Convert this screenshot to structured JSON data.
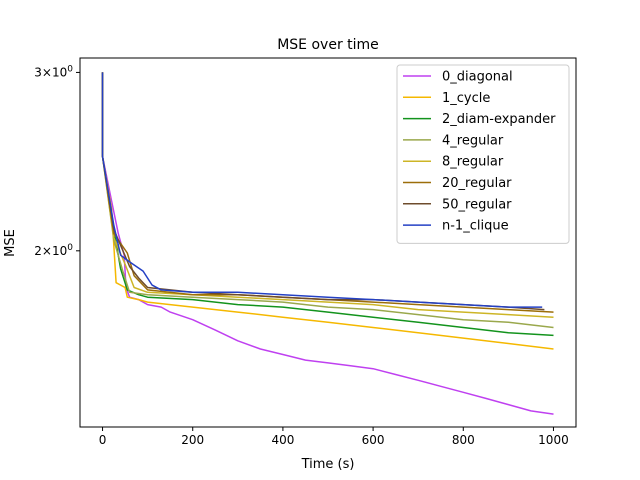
{
  "chart_data": {
    "type": "line",
    "title": "MSE over time",
    "xlabel": "Time (s)",
    "ylabel": "MSE",
    "xlim": [
      -50,
      1050
    ],
    "ylim": [
      1.34,
      3.1
    ],
    "yscale": "log",
    "grid": false,
    "legend_position": "top-right",
    "x_ticks": [
      {
        "value": 0,
        "label": "0"
      },
      {
        "value": 200,
        "label": "200"
      },
      {
        "value": 400,
        "label": "400"
      },
      {
        "value": 600,
        "label": "600"
      },
      {
        "value": 800,
        "label": "800"
      },
      {
        "value": 1000,
        "label": "1000"
      }
    ],
    "y_ticks": [
      {
        "value": 2.0,
        "base": "2",
        "exp": "0"
      },
      {
        "value": 3.0,
        "base": "3",
        "exp": "0"
      }
    ],
    "series": [
      {
        "name": "0_diagonal",
        "color": "#bf40f0",
        "points": [
          [
            0,
            3.0
          ],
          [
            0,
            2.48
          ],
          [
            20,
            2.24
          ],
          [
            35,
            2.08
          ],
          [
            48,
            1.98
          ],
          [
            52,
            1.84
          ],
          [
            60,
            1.8
          ],
          [
            80,
            1.79
          ],
          [
            100,
            1.77
          ],
          [
            130,
            1.76
          ],
          [
            150,
            1.74
          ],
          [
            200,
            1.71
          ],
          [
            250,
            1.67
          ],
          [
            300,
            1.63
          ],
          [
            350,
            1.6
          ],
          [
            400,
            1.58
          ],
          [
            450,
            1.56
          ],
          [
            500,
            1.55
          ],
          [
            550,
            1.54
          ],
          [
            600,
            1.53
          ],
          [
            650,
            1.51
          ],
          [
            700,
            1.49
          ],
          [
            750,
            1.47
          ],
          [
            800,
            1.45
          ],
          [
            850,
            1.43
          ],
          [
            900,
            1.41
          ],
          [
            950,
            1.39
          ],
          [
            1000,
            1.38
          ]
        ]
      },
      {
        "name": "1_cycle",
        "color": "#f5b800",
        "points": [
          [
            0,
            3.0
          ],
          [
            0,
            2.48
          ],
          [
            20,
            2.2
          ],
          [
            30,
            1.86
          ],
          [
            50,
            1.84
          ],
          [
            55,
            1.8
          ],
          [
            80,
            1.79
          ],
          [
            100,
            1.78
          ],
          [
            200,
            1.76
          ],
          [
            300,
            1.74
          ],
          [
            400,
            1.72
          ],
          [
            500,
            1.7
          ],
          [
            600,
            1.68
          ],
          [
            700,
            1.66
          ],
          [
            800,
            1.64
          ],
          [
            900,
            1.62
          ],
          [
            1000,
            1.6
          ]
        ]
      },
      {
        "name": "2_diam-expander",
        "color": "#13931d",
        "points": [
          [
            0,
            3.0
          ],
          [
            0,
            2.48
          ],
          [
            25,
            2.1
          ],
          [
            40,
            1.92
          ],
          [
            55,
            1.83
          ],
          [
            80,
            1.81
          ],
          [
            100,
            1.8
          ],
          [
            200,
            1.79
          ],
          [
            300,
            1.77
          ],
          [
            400,
            1.76
          ],
          [
            500,
            1.74
          ],
          [
            600,
            1.72
          ],
          [
            700,
            1.7
          ],
          [
            800,
            1.68
          ],
          [
            900,
            1.66
          ],
          [
            1000,
            1.65
          ]
        ]
      },
      {
        "name": "4_regular",
        "color": "#9aa84c",
        "points": [
          [
            0,
            3.0
          ],
          [
            0,
            2.48
          ],
          [
            25,
            2.05
          ],
          [
            45,
            1.91
          ],
          [
            60,
            1.82
          ],
          [
            100,
            1.81
          ],
          [
            200,
            1.8
          ],
          [
            300,
            1.79
          ],
          [
            400,
            1.78
          ],
          [
            500,
            1.76
          ],
          [
            600,
            1.75
          ],
          [
            700,
            1.73
          ],
          [
            800,
            1.71
          ],
          [
            900,
            1.7
          ],
          [
            1000,
            1.68
          ]
        ]
      },
      {
        "name": "8_regular",
        "color": "#cdb526",
        "points": [
          [
            0,
            3.0
          ],
          [
            0,
            2.48
          ],
          [
            25,
            2.06
          ],
          [
            50,
            1.94
          ],
          [
            70,
            1.84
          ],
          [
            100,
            1.82
          ],
          [
            200,
            1.81
          ],
          [
            300,
            1.8
          ],
          [
            400,
            1.79
          ],
          [
            500,
            1.78
          ],
          [
            600,
            1.77
          ],
          [
            700,
            1.75
          ],
          [
            800,
            1.74
          ],
          [
            900,
            1.73
          ],
          [
            1000,
            1.72
          ]
        ]
      },
      {
        "name": "20_regular",
        "color": "#9c6e0a",
        "points": [
          [
            0,
            3.0
          ],
          [
            0,
            2.48
          ],
          [
            25,
            2.08
          ],
          [
            55,
            1.99
          ],
          [
            70,
            1.89
          ],
          [
            100,
            1.83
          ],
          [
            200,
            1.81
          ],
          [
            300,
            1.81
          ],
          [
            400,
            1.8
          ],
          [
            500,
            1.79
          ],
          [
            600,
            1.78
          ],
          [
            700,
            1.77
          ],
          [
            800,
            1.76
          ],
          [
            900,
            1.75
          ],
          [
            1000,
            1.74
          ]
        ]
      },
      {
        "name": "50_regular",
        "color": "#6e4c2c",
        "points": [
          [
            0,
            3.0
          ],
          [
            0,
            2.48
          ],
          [
            25,
            2.1
          ],
          [
            60,
            1.93
          ],
          [
            80,
            1.88
          ],
          [
            100,
            1.84
          ],
          [
            200,
            1.82
          ],
          [
            300,
            1.81
          ],
          [
            400,
            1.8
          ],
          [
            500,
            1.79
          ],
          [
            600,
            1.79
          ],
          [
            700,
            1.78
          ],
          [
            800,
            1.77
          ],
          [
            900,
            1.76
          ],
          [
            980,
            1.75
          ]
        ]
      },
      {
        "name": "n-1_clique",
        "color": "#2440c4",
        "points": [
          [
            0,
            3.0
          ],
          [
            0,
            2.48
          ],
          [
            25,
            2.12
          ],
          [
            40,
            1.98
          ],
          [
            60,
            1.95
          ],
          [
            90,
            1.91
          ],
          [
            110,
            1.85
          ],
          [
            130,
            1.83
          ],
          [
            200,
            1.82
          ],
          [
            300,
            1.82
          ],
          [
            400,
            1.81
          ],
          [
            500,
            1.8
          ],
          [
            600,
            1.79
          ],
          [
            700,
            1.78
          ],
          [
            800,
            1.77
          ],
          [
            900,
            1.76
          ],
          [
            975,
            1.76
          ]
        ]
      }
    ]
  }
}
